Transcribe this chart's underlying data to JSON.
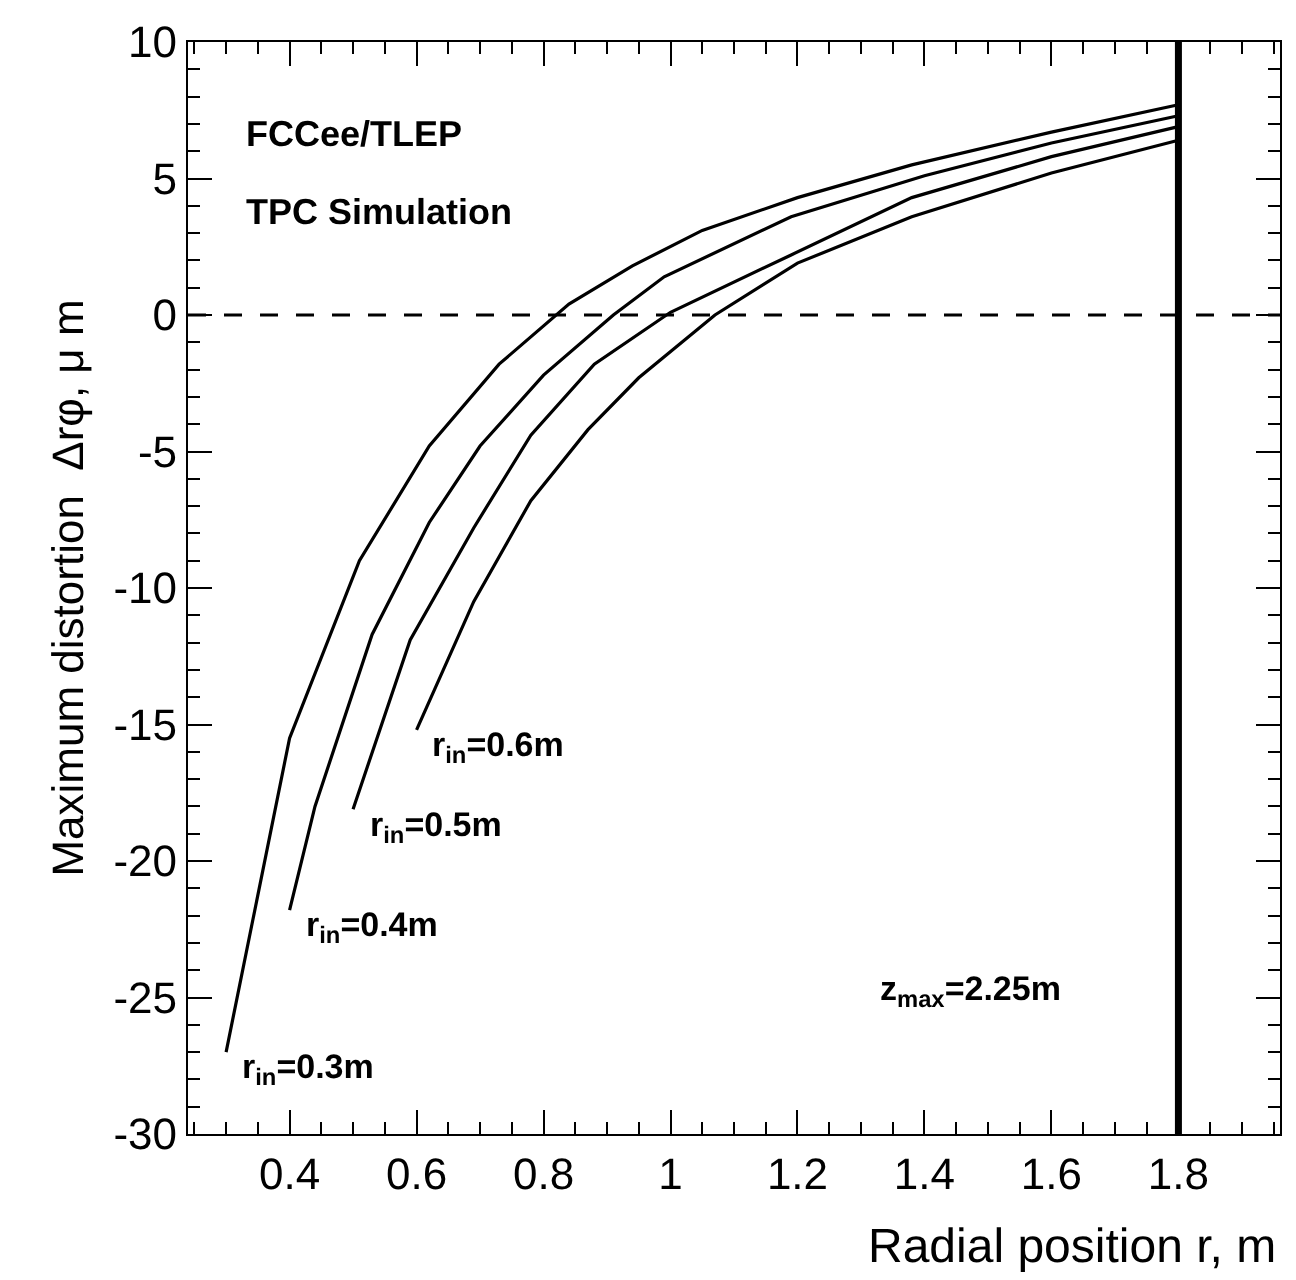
{
  "chart_data": {
    "type": "line",
    "xlabel": "Radial position r, m",
    "ylabel": "Maximum distortion  Δrφ, μ m",
    "xlim": [
      0.24,
      1.96
    ],
    "xticks": [
      0.4,
      0.6,
      0.8,
      1,
      1.2,
      1.4,
      1.6,
      1.8
    ],
    "ylim": [
      -30,
      10
    ],
    "yticks": [
      -30,
      -25,
      -20,
      -15,
      -10,
      -5,
      0,
      5,
      10
    ],
    "legend": false,
    "marker": "none",
    "line_style": "solid",
    "series": [
      {
        "name": "r$_{in}$=0.3m",
        "color": "#000000",
        "x": [
          0.3,
          0.4,
          0.51,
          0.62,
          0.73,
          0.84,
          0.94,
          1.05,
          1.2,
          1.38,
          1.6,
          1.8
        ],
        "values": [
          -27,
          -15.5,
          -9,
          -4.8,
          -1.8,
          0.4,
          1.8,
          3.1,
          4.3,
          5.5,
          6.7,
          7.7
        ]
      },
      {
        "name": "r$_{in}$=0.4m",
        "color": "#000000",
        "x": [
          0.4,
          0.44,
          0.53,
          0.62,
          0.7,
          0.8,
          0.91,
          0.99,
          1.19,
          1.4,
          1.6,
          1.8
        ],
        "values": [
          -21.8,
          -18,
          -11.7,
          -7.6,
          -4.8,
          -2.2,
          0,
          1.4,
          3.6,
          5.1,
          6.3,
          7.3
        ]
      },
      {
        "name": "r$_{in}$=0.5m",
        "color": "#000000",
        "x": [
          0.5,
          0.59,
          0.69,
          0.78,
          0.88,
          1.0,
          1.19,
          1.38,
          1.6,
          1.8
        ],
        "values": [
          -18.1,
          -11.9,
          -7.8,
          -4.4,
          -1.8,
          0.1,
          2.2,
          4.3,
          5.8,
          6.9
        ]
      },
      {
        "name": "r$_{in}$=0.6m",
        "color": "#000000",
        "x": [
          0.6,
          0.69,
          0.78,
          0.87,
          0.95,
          1.07,
          1.2,
          1.38,
          1.6,
          1.8
        ],
        "values": [
          -15.2,
          -10.5,
          -6.8,
          -4.2,
          -2.3,
          0,
          1.9,
          3.6,
          5.2,
          6.4
        ]
      }
    ],
    "ref_lines": [
      {
        "axis": "y",
        "value": 0,
        "color": "#000000",
        "line_style": "dashed"
      },
      {
        "axis": "x",
        "value": 1.8,
        "color": "#000000",
        "line_style": "solid"
      }
    ],
    "annotations": [
      "FCCee/TLEP",
      "TPC Simulation",
      "z$_{max}$=2.25m"
    ]
  }
}
